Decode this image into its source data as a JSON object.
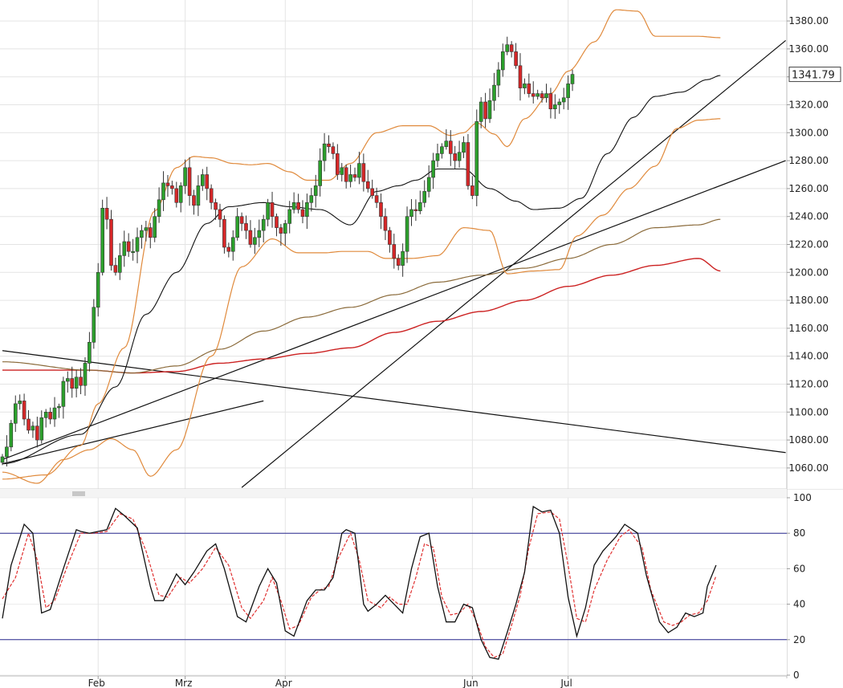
{
  "chart_data": [
    {
      "type": "candlestick",
      "y_axis": {
        "side": "right",
        "ylim": [
          1045,
          1395
        ],
        "ticks": [
          1060,
          1080,
          1100,
          1120,
          1140,
          1160,
          1180,
          1200,
          1220,
          1240,
          1260,
          1280,
          1300,
          1320,
          1340,
          1360,
          1380
        ],
        "tick_labels": [
          "1060.00",
          "1080.00",
          "1100.00",
          "1120.00",
          "1140.00",
          "1160.00",
          "1180.00",
          "1200.00",
          "1220.00",
          "1240.00",
          "1260.00",
          "1280.00",
          "1300.00",
          "1320.00",
          "1340.00",
          "1360.00",
          "1380.00"
        ]
      },
      "x_axis": {
        "months": [
          {
            "label": "Feb",
            "day": 22
          },
          {
            "label": "Mrz",
            "day": 42
          },
          {
            "label": "Apr",
            "day": 65
          },
          {
            "label": "Jun",
            "day": 108
          },
          {
            "label": "Jul",
            "day": 130
          }
        ]
      },
      "last_price": "1341.79",
      "grid": true,
      "colors": {
        "up": "#2ca02c",
        "down": "#d62728",
        "bollinger": "#e08a3c",
        "sma20": "#111111",
        "sma100": "#8a6a3a",
        "sma200": "#cc2222",
        "trendline": "#111111"
      },
      "closes": [
        1068,
        1075,
        1092,
        1106,
        1108,
        1095,
        1087,
        1090,
        1080,
        1096,
        1100,
        1095,
        1103,
        1104,
        1122,
        1124,
        1117,
        1125,
        1119,
        1135,
        1150,
        1175,
        1200,
        1246,
        1238,
        1205,
        1200,
        1212,
        1222,
        1215,
        1215,
        1225,
        1230,
        1232,
        1225,
        1240,
        1252,
        1264,
        1262,
        1260,
        1250,
        1262,
        1275,
        1255,
        1248,
        1262,
        1270,
        1260,
        1250,
        1245,
        1238,
        1218,
        1215,
        1225,
        1240,
        1235,
        1230,
        1220,
        1225,
        1230,
        1238,
        1250,
        1240,
        1232,
        1228,
        1235,
        1245,
        1250,
        1245,
        1240,
        1250,
        1255,
        1262,
        1280,
        1292,
        1290,
        1285,
        1270,
        1275,
        1265,
        1270,
        1268,
        1278,
        1265,
        1260,
        1255,
        1250,
        1240,
        1230,
        1220,
        1210,
        1205,
        1215,
        1240,
        1245,
        1244,
        1250,
        1258,
        1268,
        1280,
        1285,
        1290,
        1294,
        1285,
        1280,
        1286,
        1293,
        1262,
        1255,
        1308,
        1322,
        1310,
        1323,
        1334,
        1345,
        1358,
        1363,
        1358,
        1348,
        1332,
        1335,
        1328,
        1326,
        1328,
        1325,
        1328,
        1317,
        1320,
        1322,
        1325,
        1335,
        1341.79
      ],
      "bollinger": {
        "upper_knots": [
          [
            0,
            1052
          ],
          [
            10,
            1055
          ],
          [
            18,
            1076
          ],
          [
            22,
            1106
          ],
          [
            28,
            1146
          ],
          [
            35,
            1244
          ],
          [
            40,
            1275
          ],
          [
            44,
            1283
          ],
          [
            48,
            1282
          ],
          [
            53,
            1278
          ],
          [
            57,
            1277
          ],
          [
            61,
            1278
          ],
          [
            66,
            1272
          ],
          [
            70,
            1266
          ],
          [
            75,
            1266
          ],
          [
            80,
            1278
          ],
          [
            86,
            1300
          ],
          [
            92,
            1305
          ],
          [
            98,
            1305
          ],
          [
            103,
            1298
          ],
          [
            106,
            1300
          ],
          [
            109,
            1307
          ],
          [
            113,
            1299
          ],
          [
            116,
            1290
          ],
          [
            120,
            1310
          ],
          [
            126,
            1328
          ],
          [
            130,
            1344
          ],
          [
            136,
            1365
          ],
          [
            141,
            1388
          ],
          [
            146,
            1387
          ],
          [
            150,
            1369
          ],
          [
            155,
            1369
          ],
          [
            160,
            1369
          ],
          [
            165,
            1368
          ]
        ],
        "lower_knots": [
          [
            0,
            1057
          ],
          [
            8,
            1049
          ],
          [
            14,
            1066
          ],
          [
            20,
            1073
          ],
          [
            25,
            1081
          ],
          [
            30,
            1073
          ],
          [
            34,
            1054
          ],
          [
            40,
            1073
          ],
          [
            48,
            1140
          ],
          [
            55,
            1204
          ],
          [
            62,
            1224
          ],
          [
            68,
            1214
          ],
          [
            74,
            1214
          ],
          [
            78,
            1215
          ],
          [
            84,
            1215
          ],
          [
            88,
            1210
          ],
          [
            94,
            1210
          ],
          [
            100,
            1212
          ],
          [
            106,
            1232
          ],
          [
            112,
            1230
          ],
          [
            116,
            1199
          ],
          [
            122,
            1201
          ],
          [
            128,
            1202
          ],
          [
            132,
            1226
          ],
          [
            138,
            1241
          ],
          [
            144,
            1260
          ],
          [
            150,
            1276
          ],
          [
            155,
            1303
          ],
          [
            160,
            1309
          ],
          [
            165,
            1310
          ]
        ]
      },
      "sma20": {
        "knots": [
          [
            0,
            1063
          ],
          [
            18,
            1084
          ],
          [
            26,
            1118
          ],
          [
            33,
            1170
          ],
          [
            40,
            1200
          ],
          [
            47,
            1235
          ],
          [
            52,
            1247
          ],
          [
            60,
            1250
          ],
          [
            66,
            1247
          ],
          [
            73,
            1245
          ],
          [
            80,
            1234
          ],
          [
            86,
            1258
          ],
          [
            91,
            1262
          ],
          [
            95,
            1266
          ],
          [
            100,
            1274
          ],
          [
            106,
            1274
          ],
          [
            112,
            1260
          ],
          [
            118,
            1251
          ],
          [
            122,
            1245
          ],
          [
            128,
            1246
          ],
          [
            133,
            1253
          ],
          [
            139,
            1285
          ],
          [
            145,
            1311
          ],
          [
            150,
            1326
          ],
          [
            156,
            1329
          ],
          [
            162,
            1338
          ],
          [
            165,
            1341
          ]
        ]
      },
      "sma100": {
        "knots": [
          [
            0,
            1136
          ],
          [
            20,
            1130
          ],
          [
            30,
            1128
          ],
          [
            40,
            1133
          ],
          [
            50,
            1145
          ],
          [
            60,
            1158
          ],
          [
            70,
            1168
          ],
          [
            80,
            1175
          ],
          [
            90,
            1184
          ],
          [
            100,
            1193
          ],
          [
            110,
            1198
          ],
          [
            120,
            1203
          ],
          [
            130,
            1210
          ],
          [
            140,
            1220
          ],
          [
            150,
            1232
          ],
          [
            160,
            1234
          ],
          [
            165,
            1238
          ]
        ]
      },
      "sma200": {
        "knots": [
          [
            0,
            1130
          ],
          [
            20,
            1130
          ],
          [
            30,
            1128
          ],
          [
            40,
            1129
          ],
          [
            50,
            1135
          ],
          [
            60,
            1138
          ],
          [
            70,
            1142
          ],
          [
            80,
            1146
          ],
          [
            90,
            1157
          ],
          [
            100,
            1165
          ],
          [
            110,
            1172
          ],
          [
            120,
            1180
          ],
          [
            130,
            1190
          ],
          [
            140,
            1198
          ],
          [
            150,
            1205
          ],
          [
            160,
            1210
          ],
          [
            165,
            1201
          ]
        ]
      },
      "trendlines": [
        [
          [
            0,
            1066
          ],
          [
            180,
            1280
          ]
        ],
        [
          [
            0,
            1144
          ],
          [
            180,
            1071
          ]
        ],
        [
          [
            55,
            1046
          ],
          [
            180,
            1366
          ]
        ],
        [
          [
            0,
            1063
          ],
          [
            60,
            1108
          ]
        ]
      ]
    },
    {
      "type": "line",
      "name": "stochastic",
      "ylim": [
        0,
        100
      ],
      "ticks": [
        0,
        20,
        40,
        60,
        80,
        100
      ],
      "tick_labels": [
        "0",
        "20",
        "40",
        "60",
        "80",
        "100"
      ],
      "reference_lines": [
        20,
        80
      ],
      "colors": {
        "main": "#111111",
        "signal": "#e03030",
        "reference": "#2a2a90"
      },
      "main_knots": [
        [
          0,
          32
        ],
        [
          2,
          62
        ],
        [
          5,
          85
        ],
        [
          7,
          80
        ],
        [
          9,
          35
        ],
        [
          11,
          37
        ],
        [
          14,
          60
        ],
        [
          17,
          82
        ],
        [
          18,
          81
        ],
        [
          20,
          80
        ],
        [
          22,
          81
        ],
        [
          24,
          82
        ],
        [
          26,
          94
        ],
        [
          28,
          90
        ],
        [
          31,
          83
        ],
        [
          34,
          50
        ],
        [
          35,
          42
        ],
        [
          37,
          42
        ],
        [
          40,
          57
        ],
        [
          42,
          51
        ],
        [
          44,
          58
        ],
        [
          47,
          70
        ],
        [
          49,
          74
        ],
        [
          51,
          60
        ],
        [
          54,
          33
        ],
        [
          56,
          30
        ],
        [
          59,
          50
        ],
        [
          61,
          60
        ],
        [
          63,
          52
        ],
        [
          65,
          25
        ],
        [
          67,
          22
        ],
        [
          70,
          42
        ],
        [
          72,
          48
        ],
        [
          74,
          48
        ],
        [
          76,
          55
        ],
        [
          78,
          80
        ],
        [
          79,
          82
        ],
        [
          81,
          80
        ],
        [
          83,
          40
        ],
        [
          84,
          36
        ],
        [
          86,
          40
        ],
        [
          88,
          45
        ],
        [
          90,
          40
        ],
        [
          92,
          35
        ],
        [
          94,
          60
        ],
        [
          96,
          78
        ],
        [
          98,
          80
        ],
        [
          100,
          50
        ],
        [
          102,
          30
        ],
        [
          104,
          30
        ],
        [
          106,
          40
        ],
        [
          108,
          38
        ],
        [
          110,
          20
        ],
        [
          112,
          10
        ],
        [
          114,
          9
        ],
        [
          116,
          24
        ],
        [
          118,
          40
        ],
        [
          120,
          58
        ],
        [
          122,
          95
        ],
        [
          124,
          92
        ],
        [
          126,
          93
        ],
        [
          128,
          80
        ],
        [
          130,
          44
        ],
        [
          132,
          22
        ],
        [
          134,
          38
        ],
        [
          136,
          62
        ],
        [
          138,
          70
        ],
        [
          141,
          78
        ],
        [
          143,
          85
        ],
        [
          146,
          80
        ],
        [
          148,
          56
        ],
        [
          151,
          30
        ],
        [
          153,
          24
        ],
        [
          155,
          27
        ],
        [
          157,
          35
        ],
        [
          159,
          33
        ],
        [
          161,
          35
        ],
        [
          162,
          50
        ],
        [
          164,
          62
        ]
      ],
      "signal_knots": [
        [
          0,
          43
        ],
        [
          3,
          55
        ],
        [
          6,
          80
        ],
        [
          8,
          65
        ],
        [
          10,
          38
        ],
        [
          12,
          42
        ],
        [
          15,
          62
        ],
        [
          18,
          80
        ],
        [
          21,
          80
        ],
        [
          24,
          81
        ],
        [
          27,
          91
        ],
        [
          30,
          88
        ],
        [
          33,
          70
        ],
        [
          36,
          45
        ],
        [
          38,
          44
        ],
        [
          41,
          55
        ],
        [
          43,
          52
        ],
        [
          46,
          60
        ],
        [
          49,
          72
        ],
        [
          52,
          62
        ],
        [
          55,
          38
        ],
        [
          57,
          32
        ],
        [
          60,
          42
        ],
        [
          62,
          55
        ],
        [
          64,
          42
        ],
        [
          66,
          26
        ],
        [
          68,
          28
        ],
        [
          71,
          44
        ],
        [
          73,
          48
        ],
        [
          75,
          50
        ],
        [
          77,
          65
        ],
        [
          80,
          80
        ],
        [
          82,
          65
        ],
        [
          84,
          42
        ],
        [
          87,
          38
        ],
        [
          89,
          44
        ],
        [
          91,
          40
        ],
        [
          93,
          40
        ],
        [
          95,
          55
        ],
        [
          97,
          74
        ],
        [
          99,
          72
        ],
        [
          101,
          44
        ],
        [
          103,
          34
        ],
        [
          105,
          35
        ],
        [
          107,
          40
        ],
        [
          109,
          30
        ],
        [
          111,
          16
        ],
        [
          113,
          10
        ],
        [
          115,
          12
        ],
        [
          117,
          28
        ],
        [
          119,
          45
        ],
        [
          121,
          72
        ],
        [
          123,
          91
        ],
        [
          126,
          92
        ],
        [
          128,
          88
        ],
        [
          130,
          62
        ],
        [
          132,
          32
        ],
        [
          134,
          30
        ],
        [
          136,
          48
        ],
        [
          139,
          65
        ],
        [
          142,
          78
        ],
        [
          144,
          82
        ],
        [
          147,
          72
        ],
        [
          149,
          48
        ],
        [
          152,
          30
        ],
        [
          154,
          28
        ],
        [
          156,
          30
        ],
        [
          158,
          34
        ],
        [
          160,
          35
        ],
        [
          162,
          42
        ],
        [
          164,
          56
        ]
      ]
    }
  ]
}
